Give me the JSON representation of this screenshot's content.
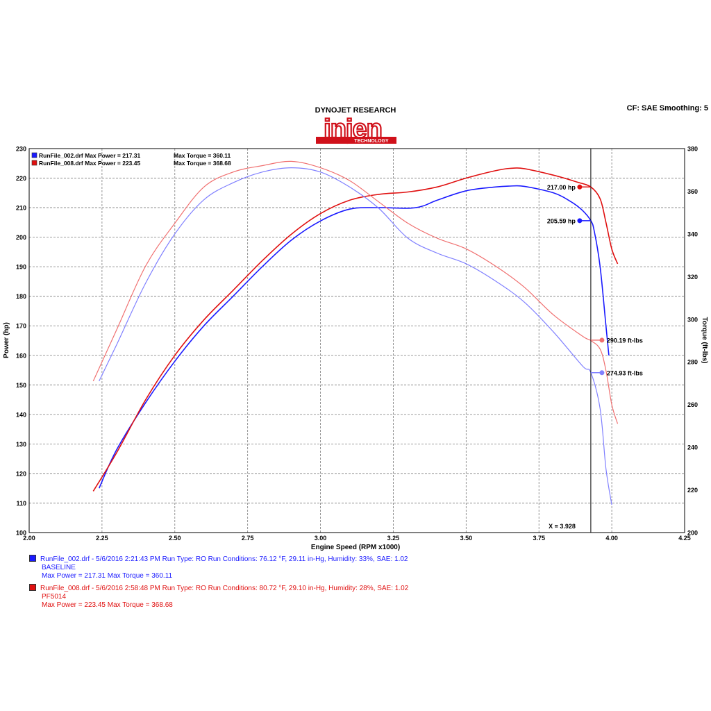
{
  "header": {
    "brand": "DYNOJET RESEARCH",
    "logo_text": "injen",
    "logo_sub": "TECHNOLOGY",
    "settings": "CF: SAE  Smoothing: 5"
  },
  "colors": {
    "blue": "#1a1aff",
    "blue_light": "#8080ff",
    "red": "#e01010",
    "red_light": "#f07070",
    "grid": "#7a7a7a"
  },
  "chart_data": {
    "type": "line",
    "xlabel": "Engine Speed (RPM x1000)",
    "ylabel": "Power (hp)",
    "y2label": "Torque (ft-lbs)",
    "xlim": [
      2.0,
      4.25
    ],
    "ylim": [
      100,
      230
    ],
    "y2lim": [
      200,
      380
    ],
    "xticks": [
      "2.00",
      "2.25",
      "2.50",
      "2.75",
      "3.00",
      "3.25",
      "3.50",
      "3.75",
      "4.00",
      "4.25"
    ],
    "yticks": [
      "100",
      "110",
      "120",
      "130",
      "140",
      "150",
      "160",
      "170",
      "180",
      "190",
      "200",
      "210",
      "220",
      "230"
    ],
    "y2ticks": [
      "200",
      "220",
      "240",
      "260",
      "280",
      "300",
      "320",
      "340",
      "360",
      "380"
    ],
    "grid": true,
    "inset_legend": [
      {
        "text": "RunFile_002.drf Max Power = 217.31",
        "torque": "Max Torque = 360.11",
        "color": "#1a1aff"
      },
      {
        "text": "RunFile_008.drf Max Power = 223.45",
        "torque": "Max Torque = 368.68",
        "color": "#e01010"
      }
    ],
    "cursor": {
      "x": 3.928,
      "label": "X = 3.928"
    },
    "markers": [
      {
        "label": "217.00 hp",
        "y": 217.0,
        "axis": "left",
        "color": "#e01010"
      },
      {
        "label": "205.59 hp",
        "y": 205.59,
        "axis": "left",
        "color": "#1a1aff"
      },
      {
        "label": "290.19 ft-lbs",
        "y": 290.19,
        "axis": "right",
        "color": "#f07070"
      },
      {
        "label": "274.93 ft-lbs",
        "y": 274.93,
        "axis": "right",
        "color": "#8080ff"
      }
    ],
    "series": [
      {
        "name": "RunFile_002.drf Power",
        "axis": "left",
        "color": "#1a1aff",
        "width": 1.6,
        "points": [
          [
            2.24,
            115
          ],
          [
            2.3,
            128
          ],
          [
            2.4,
            144
          ],
          [
            2.5,
            158
          ],
          [
            2.6,
            170
          ],
          [
            2.7,
            180
          ],
          [
            2.8,
            190
          ],
          [
            2.9,
            199
          ],
          [
            3.0,
            205.5
          ],
          [
            3.1,
            209.5
          ],
          [
            3.2,
            210
          ],
          [
            3.3,
            209.8
          ],
          [
            3.35,
            210.5
          ],
          [
            3.4,
            212.5
          ],
          [
            3.5,
            215.7
          ],
          [
            3.6,
            217
          ],
          [
            3.65,
            217.3
          ],
          [
            3.7,
            217.2
          ],
          [
            3.8,
            215
          ],
          [
            3.86,
            212
          ],
          [
            3.9,
            209
          ],
          [
            3.928,
            205.6
          ],
          [
            3.94,
            202
          ],
          [
            3.96,
            190
          ],
          [
            3.98,
            170
          ],
          [
            3.99,
            160
          ]
        ]
      },
      {
        "name": "RunFile_008.drf Power",
        "axis": "left",
        "color": "#e01010",
        "width": 1.6,
        "points": [
          [
            2.22,
            114
          ],
          [
            2.3,
            127
          ],
          [
            2.4,
            145
          ],
          [
            2.5,
            160
          ],
          [
            2.6,
            172
          ],
          [
            2.7,
            182
          ],
          [
            2.8,
            192
          ],
          [
            2.9,
            201
          ],
          [
            3.0,
            208
          ],
          [
            3.1,
            212.5
          ],
          [
            3.2,
            214.5
          ],
          [
            3.3,
            215.3
          ],
          [
            3.4,
            217
          ],
          [
            3.5,
            220
          ],
          [
            3.6,
            222.5
          ],
          [
            3.65,
            223.3
          ],
          [
            3.7,
            223.2
          ],
          [
            3.8,
            221
          ],
          [
            3.88,
            218.7
          ],
          [
            3.928,
            217
          ],
          [
            3.96,
            213
          ],
          [
            3.98,
            205
          ],
          [
            4.0,
            196
          ],
          [
            4.02,
            191
          ]
        ]
      },
      {
        "name": "RunFile_002.drf Torque",
        "axis": "right",
        "color": "#8080ff",
        "width": 1.2,
        "points": [
          [
            2.24,
            271
          ],
          [
            2.3,
            288
          ],
          [
            2.4,
            317
          ],
          [
            2.5,
            340
          ],
          [
            2.6,
            356
          ],
          [
            2.7,
            364
          ],
          [
            2.8,
            369
          ],
          [
            2.9,
            371
          ],
          [
            3.0,
            369
          ],
          [
            3.1,
            362
          ],
          [
            3.2,
            352
          ],
          [
            3.3,
            338
          ],
          [
            3.4,
            331
          ],
          [
            3.5,
            326
          ],
          [
            3.6,
            318
          ],
          [
            3.7,
            308
          ],
          [
            3.8,
            294
          ],
          [
            3.9,
            278
          ],
          [
            3.928,
            275
          ],
          [
            3.96,
            258
          ],
          [
            3.98,
            230
          ],
          [
            4.0,
            213
          ]
        ]
      },
      {
        "name": "RunFile_008.drf Torque",
        "axis": "right",
        "color": "#f07070",
        "width": 1.2,
        "points": [
          [
            2.22,
            271
          ],
          [
            2.3,
            295
          ],
          [
            2.4,
            325
          ],
          [
            2.5,
            345
          ],
          [
            2.6,
            362
          ],
          [
            2.7,
            369
          ],
          [
            2.8,
            372
          ],
          [
            2.9,
            374
          ],
          [
            3.0,
            371
          ],
          [
            3.1,
            365
          ],
          [
            3.2,
            355
          ],
          [
            3.3,
            345
          ],
          [
            3.4,
            338
          ],
          [
            3.5,
            333
          ],
          [
            3.6,
            325
          ],
          [
            3.7,
            315
          ],
          [
            3.8,
            302
          ],
          [
            3.9,
            292
          ],
          [
            3.928,
            290
          ],
          [
            3.96,
            286
          ],
          [
            3.98,
            276
          ],
          [
            4.0,
            260
          ],
          [
            4.02,
            251
          ]
        ]
      }
    ]
  },
  "legend": {
    "runs": [
      {
        "line1": "RunFile_002.drf - 5/6/2016 2:21:43 PM  Run Type: RO  Run Conditions: 76.12 °F, 29.11 in-Hg,  Humidity:  33%, SAE: 1.02",
        "line2": "BASELINE",
        "line3": "Max Power = 217.31  Max Torque = 360.11",
        "color": "#1a1aff"
      },
      {
        "line1": "RunFile_008.drf - 5/6/2016 2:58:48 PM  Run Type: RO  Run Conditions: 80.72 °F, 29.10 in-Hg,  Humidity:  28%, SAE: 1.02",
        "line2": "PF5014",
        "line3": "Max Power = 223.45  Max Torque = 368.68",
        "color": "#e01010"
      }
    ]
  }
}
